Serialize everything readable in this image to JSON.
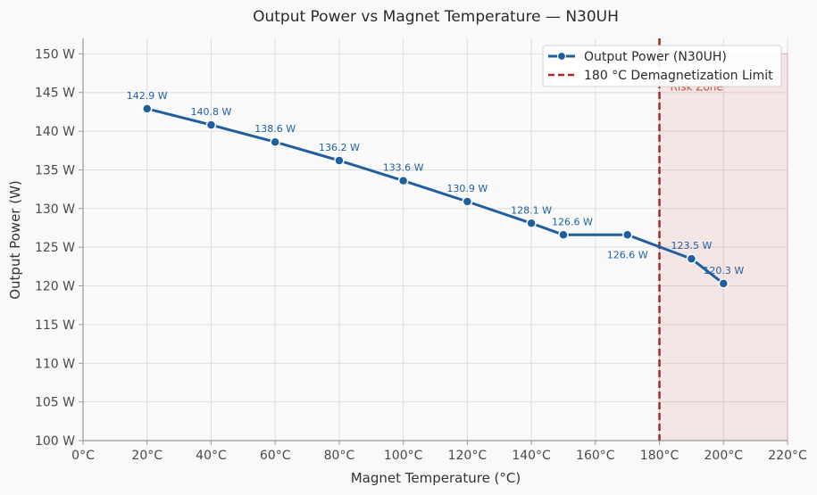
{
  "chart_data": {
    "type": "line",
    "title": "Output Power vs Magnet Temperature — N30UH",
    "xlabel": "Magnet Temperature (°C)",
    "ylabel": "Output Power (W)",
    "xlim": [
      0,
      220
    ],
    "ylim": [
      100,
      152
    ],
    "x_ticks": [
      0,
      20,
      40,
      60,
      80,
      100,
      120,
      140,
      160,
      180,
      200,
      220
    ],
    "x_tick_labels": [
      "0°C",
      "20°C",
      "40°C",
      "60°C",
      "80°C",
      "100°C",
      "120°C",
      "140°C",
      "160°C",
      "180°C",
      "200°C",
      "220°C"
    ],
    "y_ticks": [
      100,
      105,
      110,
      115,
      120,
      125,
      130,
      135,
      140,
      145,
      150
    ],
    "y_tick_labels": [
      "100 W",
      "105 W",
      "110 W",
      "115 W",
      "120 W",
      "125 W",
      "130 W",
      "135 W",
      "140 W",
      "145 W",
      "150 W"
    ],
    "grid": true,
    "legend_position": "top-right",
    "series": [
      {
        "name": "Output Power (N30UH)",
        "color": "#1f5fa0",
        "points": [
          {
            "x": 20,
            "y": 142.9,
            "label": "142.9 W"
          },
          {
            "x": 40,
            "y": 140.8,
            "label": "140.8 W"
          },
          {
            "x": 60,
            "y": 138.6,
            "label": "138.6 W"
          },
          {
            "x": 80,
            "y": 136.2,
            "label": "136.2 W"
          },
          {
            "x": 100,
            "y": 133.6,
            "label": "133.6 W"
          },
          {
            "x": 120,
            "y": 130.9,
            "label": "130.9 W"
          },
          {
            "x": 140,
            "y": 128.1,
            "label": "128.1 W"
          },
          {
            "x": 150,
            "y": 126.6,
            "label": "126.6 W"
          },
          {
            "x": 170,
            "y": 126.6,
            "label": "126.6 W"
          },
          {
            "x": 190,
            "y": 123.5,
            "label": "123.5 W"
          },
          {
            "x": 200,
            "y": 120.3,
            "label": "120.3 W"
          }
        ]
      }
    ],
    "reference_line": {
      "x": 180,
      "name": "180 °C Demagnetization Limit",
      "color": "#a52a2a"
    },
    "shaded_region": {
      "x_start": 180,
      "x_end": 220,
      "y_start": 100,
      "y_end": 150,
      "label": "Risk Zone",
      "color": "#c0392b"
    }
  }
}
